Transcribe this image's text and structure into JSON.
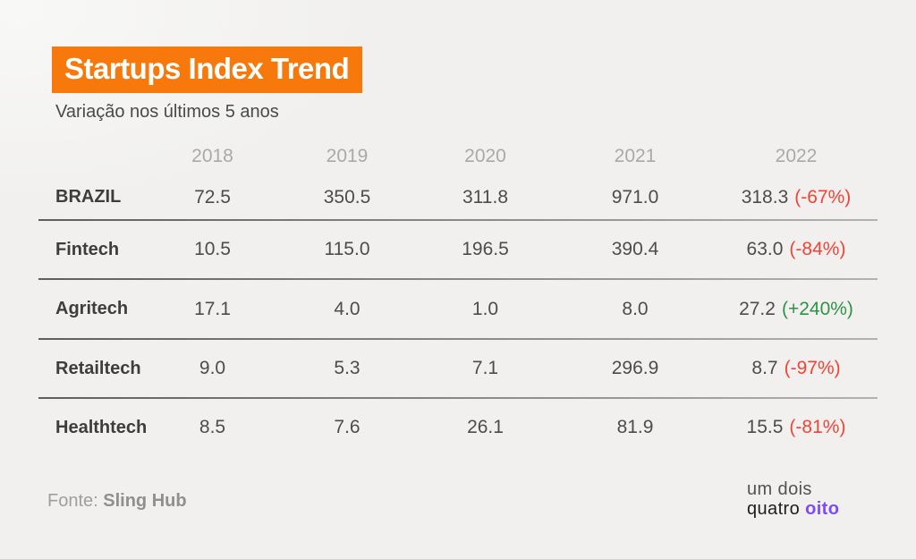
{
  "colors": {
    "background": "#f1f0ee",
    "accent_orange": "#f8790b",
    "negative": "#f44336",
    "positive": "#2e9348",
    "brand_accent": "#7c4bfa"
  },
  "header": {
    "title": "Startups Index Trend",
    "subtitle": "Variação nos últimos 5 anos"
  },
  "table": {
    "columns": [
      "2018",
      "2019",
      "2020",
      "2021",
      "2022"
    ],
    "rows": [
      {
        "label": "BRAZIL",
        "values": [
          "72.5",
          "350.5",
          "311.8",
          "971.0"
        ],
        "value_2022": "318.3",
        "change": "(-67%)",
        "trend": "down"
      },
      {
        "label": "Fintech",
        "values": [
          "10.5",
          "115.0",
          "196.5",
          "390.4"
        ],
        "value_2022": "63.0",
        "change": "(-84%)",
        "trend": "down"
      },
      {
        "label": "Agritech",
        "values": [
          "17.1",
          "4.0",
          "1.0",
          "8.0"
        ],
        "value_2022": "27.2",
        "change": "(+240%)",
        "trend": "up"
      },
      {
        "label": "Retailtech",
        "values": [
          "9.0",
          "5.3",
          "7.1",
          "296.9"
        ],
        "value_2022": "8.7",
        "change": "(-97%)",
        "trend": "down"
      },
      {
        "label": "Healthtech",
        "values": [
          "8.5",
          "7.6",
          "26.1",
          "81.9"
        ],
        "value_2022": "15.5",
        "change": "(-81%)",
        "trend": "down"
      }
    ]
  },
  "footer": {
    "source_label": "Fonte:",
    "source_name": "Sling Hub",
    "logo_line1": "um dois",
    "logo_word_quatro": "quatro",
    "logo_word_oito": "oito"
  },
  "chart_data": {
    "type": "table",
    "title": "Startups Index Trend",
    "subtitle": "Variação nos últimos 5 anos",
    "columns": [
      "2018",
      "2019",
      "2020",
      "2021",
      "2022"
    ],
    "rows": [
      {
        "name": "BRAZIL",
        "values": [
          72.5,
          350.5,
          311.8,
          971.0,
          318.3
        ],
        "change_2022_pct": -67
      },
      {
        "name": "Fintech",
        "values": [
          10.5,
          115.0,
          196.5,
          390.4,
          63.0
        ],
        "change_2022_pct": -84
      },
      {
        "name": "Agritech",
        "values": [
          17.1,
          4.0,
          1.0,
          8.0,
          27.2
        ],
        "change_2022_pct": 240
      },
      {
        "name": "Retailtech",
        "values": [
          9.0,
          5.3,
          7.1,
          296.9,
          8.7
        ],
        "change_2022_pct": -97
      },
      {
        "name": "Healthtech",
        "values": [
          8.5,
          7.6,
          26.1,
          81.9,
          15.5
        ],
        "change_2022_pct": -81
      }
    ],
    "source": "Sling Hub"
  }
}
